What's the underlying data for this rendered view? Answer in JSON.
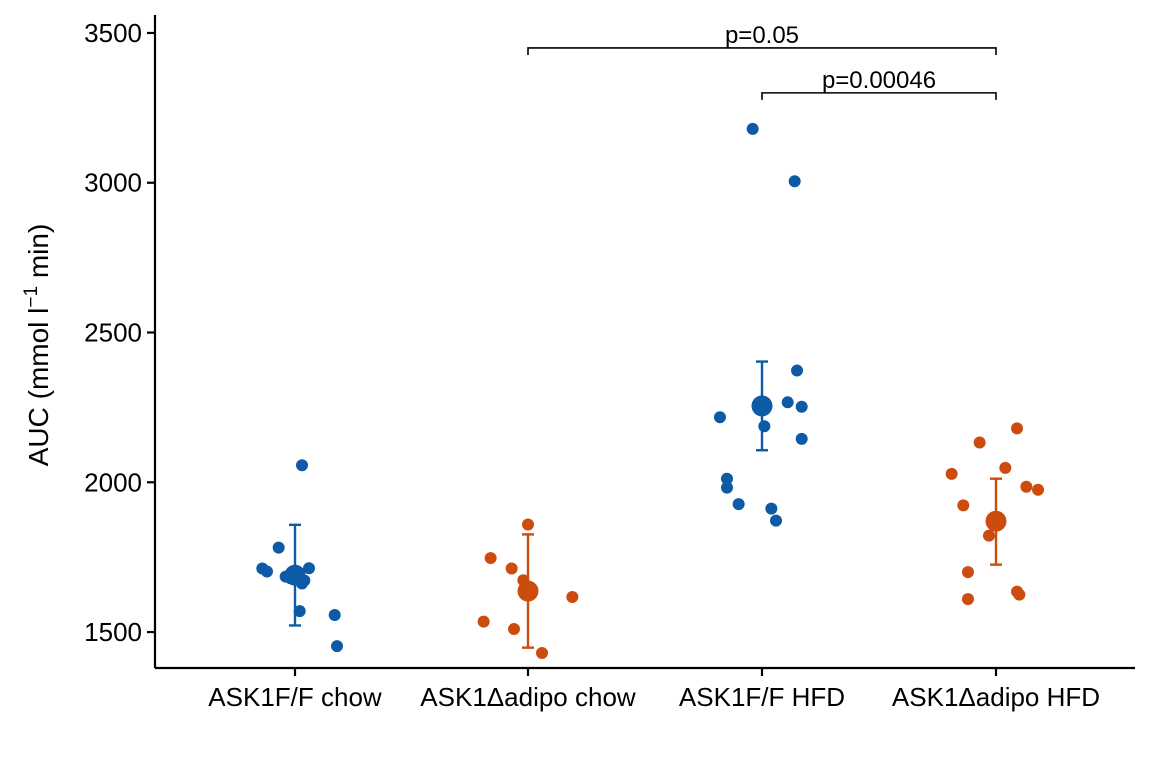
{
  "chart_data": {
    "type": "scatter",
    "ylabel_parts": {
      "pre": "AUC (mmol l",
      "sup": "−1",
      "post": " min)"
    },
    "xlabel": "",
    "ylim": [
      1380,
      3560
    ],
    "yticks": [
      1500,
      2000,
      2500,
      3000,
      3500
    ],
    "grid": false,
    "legend": "none",
    "categories": [
      "ASK1F/F chow",
      "ASK1Δadipo chow",
      "ASK1F/F HFD",
      "ASK1Δadipo HFD"
    ],
    "groups": [
      {
        "category": "ASK1F/F chow",
        "color": "#0D5BA6",
        "mean": 1690,
        "error_low": 1522,
        "error_high": 1858,
        "points": [
          {
            "offset": -0.14,
            "y": 1712
          },
          {
            "offset": -0.12,
            "y": 1702
          },
          {
            "offset": -0.07,
            "y": 1782
          },
          {
            "offset": -0.04,
            "y": 1685
          },
          {
            "offset": -0.02,
            "y": 1680
          },
          {
            "offset": 0.01,
            "y": 1695
          },
          {
            "offset": 0.02,
            "y": 1570
          },
          {
            "offset": 0.03,
            "y": 1662
          },
          {
            "offset": 0.04,
            "y": 1672
          },
          {
            "offset": 0.03,
            "y": 2057
          },
          {
            "offset": 0.06,
            "y": 1713
          },
          {
            "offset": 0.17,
            "y": 1557
          },
          {
            "offset": 0.18,
            "y": 1453
          }
        ]
      },
      {
        "category": "ASK1Δadipo chow",
        "color": "#CC4C0E",
        "mean": 1637,
        "error_low": 1448,
        "error_high": 1826,
        "points": [
          {
            "offset": -0.19,
            "y": 1535
          },
          {
            "offset": -0.16,
            "y": 1747
          },
          {
            "offset": -0.07,
            "y": 1712
          },
          {
            "offset": -0.06,
            "y": 1510
          },
          {
            "offset": -0.02,
            "y": 1673
          },
          {
            "offset": 0.0,
            "y": 1859
          },
          {
            "offset": 0.06,
            "y": 1430
          },
          {
            "offset": 0.19,
            "y": 1617
          }
        ]
      },
      {
        "category": "ASK1F/F HFD",
        "color": "#0D5BA6",
        "mean": 2255,
        "error_low": 2107,
        "error_high": 2403,
        "points": [
          {
            "offset": -0.18,
            "y": 2217
          },
          {
            "offset": -0.15,
            "y": 2012
          },
          {
            "offset": -0.15,
            "y": 1982
          },
          {
            "offset": -0.1,
            "y": 1927
          },
          {
            "offset": -0.04,
            "y": 3180
          },
          {
            "offset": 0.01,
            "y": 2187
          },
          {
            "offset": 0.04,
            "y": 1912
          },
          {
            "offset": 0.06,
            "y": 1872
          },
          {
            "offset": 0.11,
            "y": 2267
          },
          {
            "offset": 0.14,
            "y": 3005
          },
          {
            "offset": 0.15,
            "y": 2373
          },
          {
            "offset": 0.17,
            "y": 2252
          },
          {
            "offset": 0.17,
            "y": 2145
          }
        ]
      },
      {
        "category": "ASK1Δadipo HFD",
        "color": "#CC4C0E",
        "mean": 1870,
        "error_low": 1725,
        "error_high": 2012,
        "points": [
          {
            "offset": -0.19,
            "y": 2028
          },
          {
            "offset": -0.14,
            "y": 1923
          },
          {
            "offset": -0.12,
            "y": 1700
          },
          {
            "offset": -0.12,
            "y": 1610
          },
          {
            "offset": -0.07,
            "y": 2133
          },
          {
            "offset": -0.03,
            "y": 1822
          },
          {
            "offset": 0.04,
            "y": 2048
          },
          {
            "offset": 0.09,
            "y": 1635
          },
          {
            "offset": 0.1,
            "y": 1625
          },
          {
            "offset": 0.09,
            "y": 2180
          },
          {
            "offset": 0.13,
            "y": 1985
          },
          {
            "offset": 0.18,
            "y": 1975
          }
        ]
      }
    ],
    "comparisons": [
      {
        "from": "ASK1Δadipo chow",
        "to": "ASK1Δadipo HFD",
        "y": 3450,
        "label": "p=0.05"
      },
      {
        "from": "ASK1F/F HFD",
        "to": "ASK1Δadipo HFD",
        "y": 3300,
        "label": "p=0.00046"
      }
    ]
  }
}
